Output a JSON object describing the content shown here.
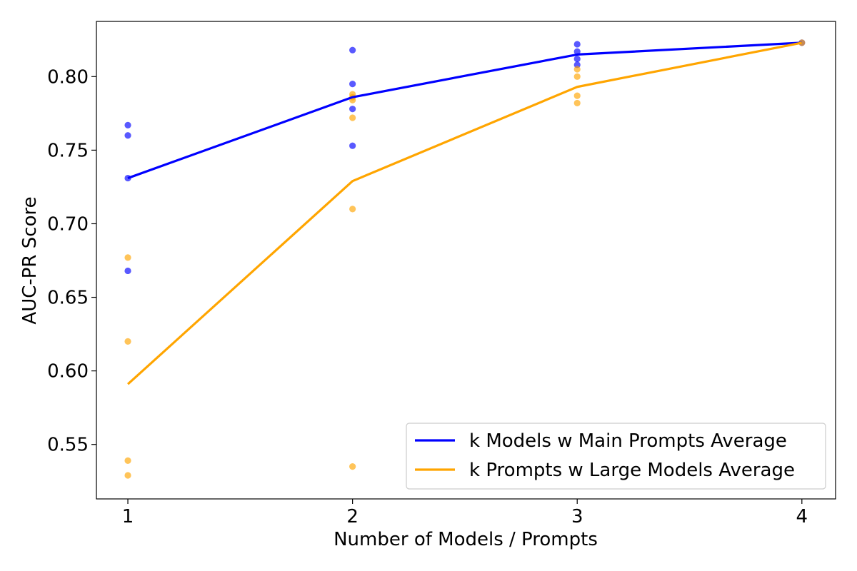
{
  "chart_data": {
    "type": "line",
    "title": "",
    "xlabel": "Number of Models / Prompts",
    "ylabel": "AUC-PR Score",
    "x": [
      1,
      2,
      3,
      4
    ],
    "x_ticks": [
      "1",
      "2",
      "3",
      "4"
    ],
    "y_ticks": [
      "0.55",
      "0.60",
      "0.65",
      "0.70",
      "0.75",
      "0.80"
    ],
    "xlim": [
      0.86,
      4.15
    ],
    "ylim": [
      0.513,
      0.8375
    ],
    "grid": false,
    "legend_position": "lower-right",
    "series": [
      {
        "name": "k Models w Main Prompts Average",
        "color": "#0000ff",
        "values": [
          0.731,
          0.786,
          0.815,
          0.823
        ],
        "points": [
          [
            1,
            0.767
          ],
          [
            1,
            0.76
          ],
          [
            1,
            0.731
          ],
          [
            1,
            0.668
          ],
          [
            2,
            0.818
          ],
          [
            2,
            0.795
          ],
          [
            2,
            0.778
          ],
          [
            2,
            0.753
          ],
          [
            3,
            0.822
          ],
          [
            3,
            0.817
          ],
          [
            3,
            0.812
          ],
          [
            3,
            0.808
          ],
          [
            4,
            0.823
          ]
        ]
      },
      {
        "name": "k Prompts w Large Models Average",
        "color": "#ffa500",
        "values": [
          0.591,
          0.729,
          0.793,
          0.823
        ],
        "points": [
          [
            1,
            0.677
          ],
          [
            1,
            0.62
          ],
          [
            1,
            0.539
          ],
          [
            1,
            0.529
          ],
          [
            2,
            0.788
          ],
          [
            2,
            0.786
          ],
          [
            2,
            0.784
          ],
          [
            2,
            0.772
          ],
          [
            2,
            0.71
          ],
          [
            2,
            0.535
          ],
          [
            3,
            0.805
          ],
          [
            3,
            0.8
          ],
          [
            3,
            0.787
          ],
          [
            3,
            0.782
          ],
          [
            4,
            0.823
          ]
        ]
      }
    ]
  }
}
